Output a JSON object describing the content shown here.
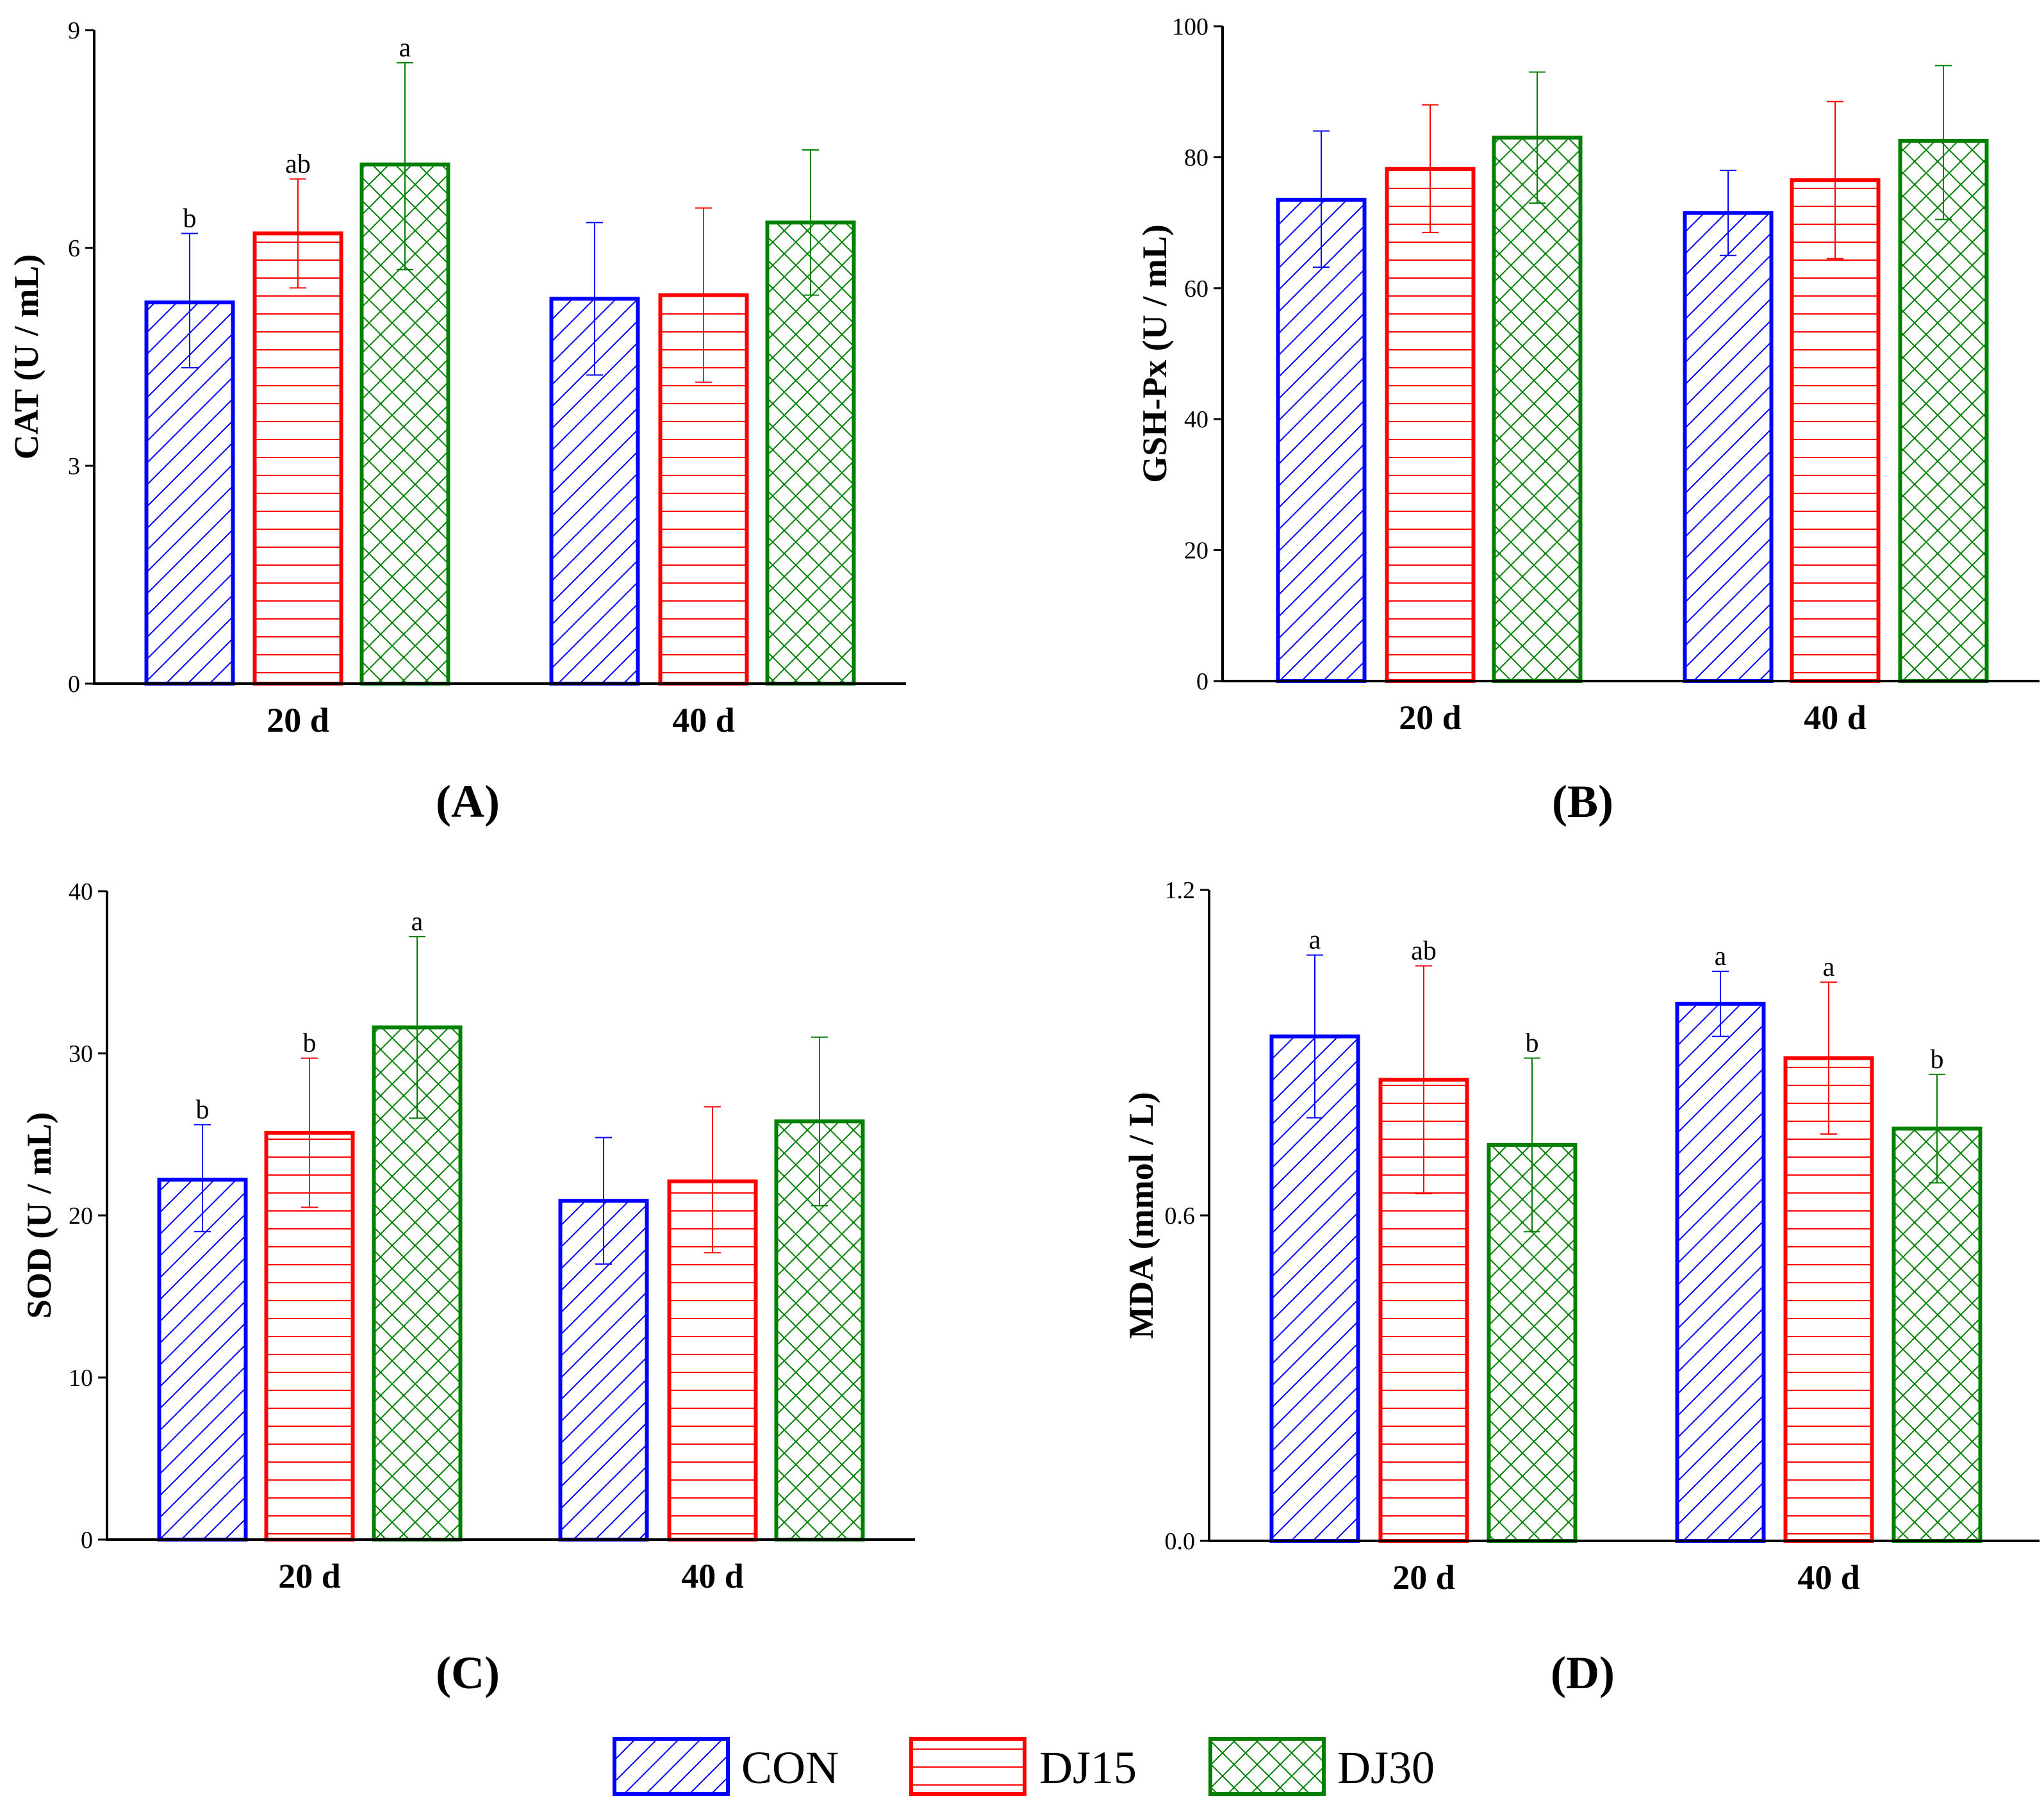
{
  "colors": {
    "CON": "#0000ff",
    "DJ15": "#ff0000",
    "DJ30": "#008000"
  },
  "legend": [
    "CON",
    "DJ15",
    "DJ30"
  ],
  "chart_data": [
    {
      "type": "bar",
      "panel": "(A)",
      "ylabel": "CAT (U / mL)",
      "ylim": [
        0,
        9
      ],
      "yticks": [
        "0",
        "3",
        "6",
        "9"
      ],
      "categories": [
        "20 d",
        "40 d"
      ],
      "series": [
        {
          "name": "CON",
          "values": [
            5.25,
            5.3
          ],
          "err_low": [
            4.35,
            4.25
          ],
          "err_high": [
            6.2,
            6.35
          ],
          "letters": [
            "b",
            ""
          ]
        },
        {
          "name": "DJ15",
          "values": [
            6.2,
            5.35
          ],
          "err_low": [
            5.45,
            4.15
          ],
          "err_high": [
            6.95,
            6.55
          ],
          "letters": [
            "ab",
            ""
          ]
        },
        {
          "name": "DJ30",
          "values": [
            7.15,
            6.35
          ],
          "err_low": [
            5.7,
            5.35
          ],
          "err_high": [
            8.55,
            7.35
          ],
          "letters": [
            "a",
            ""
          ]
        }
      ]
    },
    {
      "type": "bar",
      "panel": "(B)",
      "ylabel": "GSH-Px (U / mL)",
      "ylim": [
        0,
        100
      ],
      "yticks": [
        "0",
        "20",
        "40",
        "60",
        "80",
        "100"
      ],
      "categories": [
        "20 d",
        "40 d"
      ],
      "series": [
        {
          "name": "CON",
          "values": [
            73.5,
            71.5
          ],
          "err_low": [
            63.2,
            65
          ],
          "err_high": [
            84,
            78
          ],
          "letters": [
            "",
            ""
          ]
        },
        {
          "name": "DJ15",
          "values": [
            78.2,
            76.5
          ],
          "err_low": [
            68.5,
            64.5
          ],
          "err_high": [
            88,
            88.5
          ],
          "letters": [
            "",
            ""
          ]
        },
        {
          "name": "DJ30",
          "values": [
            83,
            82.5
          ],
          "err_low": [
            73,
            70.5
          ],
          "err_high": [
            93,
            94
          ],
          "letters": [
            "",
            ""
          ]
        }
      ]
    },
    {
      "type": "bar",
      "panel": "(C)",
      "ylabel": "SOD (U / mL)",
      "ylim": [
        0,
        40
      ],
      "yticks": [
        "0",
        "10",
        "20",
        "30",
        "40"
      ],
      "categories": [
        "20 d",
        "40 d"
      ],
      "series": [
        {
          "name": "CON",
          "values": [
            22.2,
            20.9
          ],
          "err_low": [
            19,
            17
          ],
          "err_high": [
            25.6,
            24.8
          ],
          "letters": [
            "b",
            ""
          ]
        },
        {
          "name": "DJ15",
          "values": [
            25.1,
            22.1
          ],
          "err_low": [
            20.5,
            17.7
          ],
          "err_high": [
            29.7,
            26.7
          ],
          "letters": [
            "b",
            ""
          ]
        },
        {
          "name": "DJ30",
          "values": [
            31.6,
            25.8
          ],
          "err_low": [
            26,
            20.6
          ],
          "err_high": [
            37.2,
            31
          ],
          "letters": [
            "a",
            ""
          ]
        }
      ]
    },
    {
      "type": "bar",
      "panel": "(D)",
      "ylabel": "MDA (mmol / L)",
      "ylim": [
        0,
        1.2
      ],
      "yticks": [
        "0.0",
        "0.6",
        "1.2"
      ],
      "categories": [
        "20 d",
        "40 d"
      ],
      "series": [
        {
          "name": "CON",
          "values": [
            0.93,
            0.99
          ],
          "err_low": [
            0.78,
            0.93
          ],
          "err_high": [
            1.08,
            1.05
          ],
          "letters": [
            "a",
            "a"
          ]
        },
        {
          "name": "DJ15",
          "values": [
            0.85,
            0.89
          ],
          "err_low": [
            0.64,
            0.75
          ],
          "err_high": [
            1.06,
            1.03
          ],
          "letters": [
            "ab",
            "a"
          ]
        },
        {
          "name": "DJ30",
          "values": [
            0.73,
            0.76
          ],
          "err_low": [
            0.57,
            0.66
          ],
          "err_high": [
            0.89,
            0.86
          ],
          "letters": [
            "b",
            "b"
          ]
        }
      ]
    }
  ]
}
